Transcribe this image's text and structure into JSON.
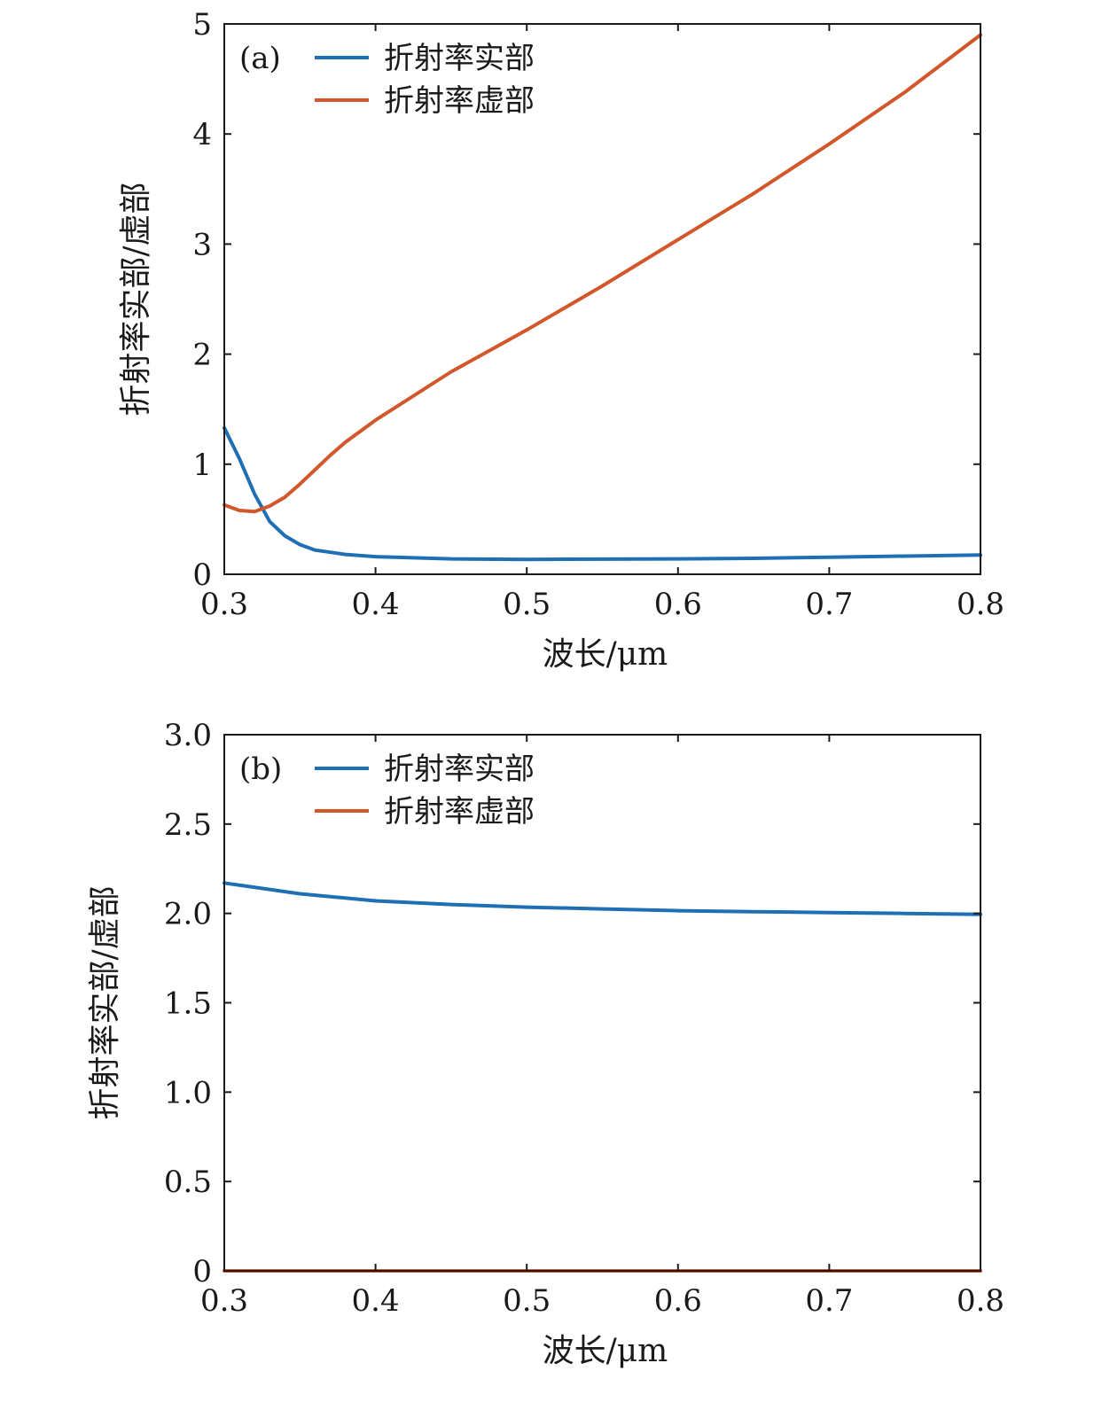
{
  "chart_data": [
    {
      "type": "line",
      "panel_label": "(a)",
      "xlabel": "波长/μm",
      "ylabel": "折射率实部/虚部",
      "xlim": [
        0.3,
        0.8
      ],
      "ylim": [
        0,
        5
      ],
      "xticks": [
        "0.3",
        "0.4",
        "0.5",
        "0.6",
        "0.7",
        "0.8"
      ],
      "yticks": [
        "0",
        "1",
        "2",
        "3",
        "4",
        "5"
      ],
      "legend_position": "top-left",
      "grid": false,
      "series": [
        {
          "name": "折射率实部",
          "color": "#1f6fb5",
          "x": [
            0.3,
            0.31,
            0.32,
            0.33,
            0.34,
            0.35,
            0.36,
            0.38,
            0.4,
            0.45,
            0.5,
            0.55,
            0.6,
            0.65,
            0.7,
            0.75,
            0.8
          ],
          "y": [
            1.33,
            1.05,
            0.73,
            0.48,
            0.35,
            0.27,
            0.22,
            0.18,
            0.16,
            0.14,
            0.135,
            0.138,
            0.14,
            0.145,
            0.155,
            0.165,
            0.175
          ]
        },
        {
          "name": "折射率虚部",
          "color": "#d2572a",
          "x": [
            0.3,
            0.31,
            0.32,
            0.33,
            0.34,
            0.35,
            0.36,
            0.37,
            0.38,
            0.4,
            0.45,
            0.5,
            0.55,
            0.6,
            0.65,
            0.7,
            0.75,
            0.8
          ],
          "y": [
            0.63,
            0.58,
            0.57,
            0.62,
            0.7,
            0.82,
            0.95,
            1.08,
            1.2,
            1.4,
            1.84,
            2.22,
            2.62,
            3.04,
            3.46,
            3.91,
            4.38,
            4.9
          ]
        }
      ]
    },
    {
      "type": "line",
      "panel_label": "(b)",
      "xlabel": "波长/μm",
      "ylabel": "折射率实部/虚部",
      "xlim": [
        0.3,
        0.8
      ],
      "ylim": [
        0,
        3
      ],
      "xticks": [
        "0.3",
        "0.4",
        "0.5",
        "0.6",
        "0.7",
        "0.8"
      ],
      "yticks": [
        "0",
        "0.5",
        "1.0",
        "1.5",
        "2.0",
        "2.5",
        "3.0"
      ],
      "legend_position": "top-left",
      "grid": false,
      "series": [
        {
          "name": "折射率实部",
          "color": "#1f6fb5",
          "x": [
            0.3,
            0.35,
            0.4,
            0.45,
            0.5,
            0.55,
            0.6,
            0.65,
            0.7,
            0.75,
            0.8
          ],
          "y": [
            2.17,
            2.11,
            2.07,
            2.05,
            2.035,
            2.025,
            2.015,
            2.01,
            2.005,
            2.0,
            1.995
          ]
        },
        {
          "name": "折射率虚部",
          "color": "#d2572a",
          "x": [
            0.3,
            0.35,
            0.4,
            0.45,
            0.5,
            0.55,
            0.6,
            0.65,
            0.7,
            0.75,
            0.8
          ],
          "y": [
            0,
            0,
            0,
            0,
            0,
            0,
            0,
            0,
            0,
            0,
            0
          ]
        }
      ]
    }
  ]
}
